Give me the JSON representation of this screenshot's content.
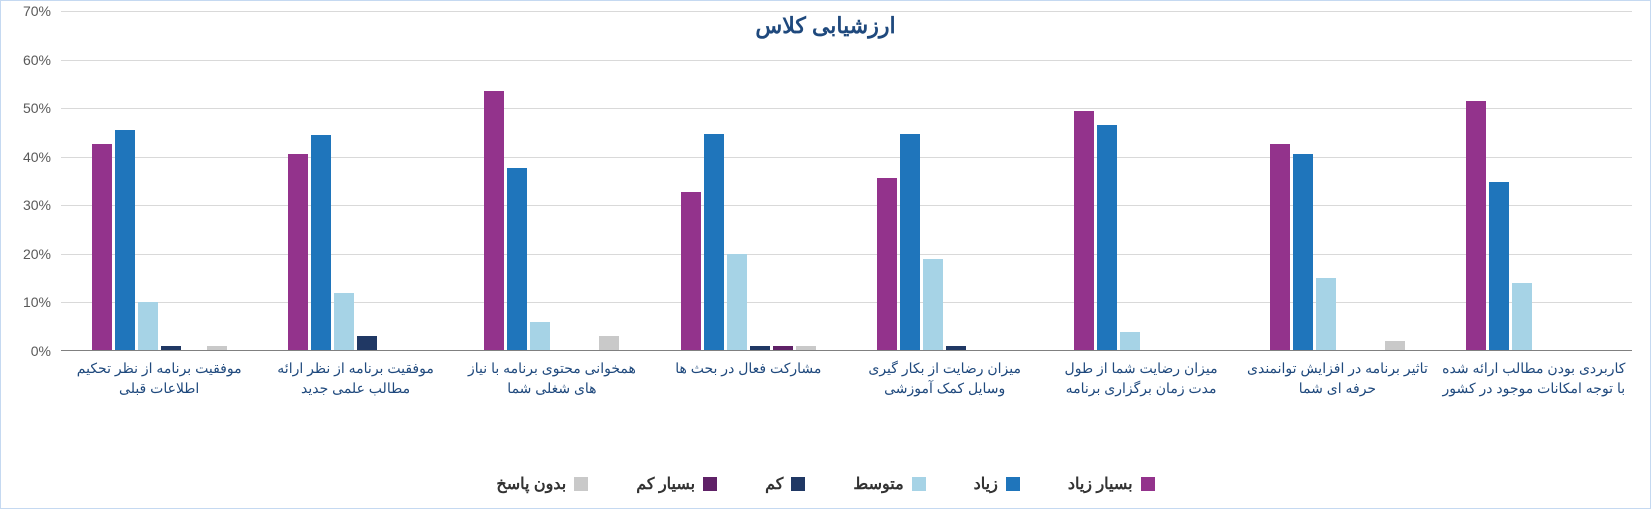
{
  "chart": {
    "title": "ارزشیابی کلاس",
    "title_color": "#1f497d",
    "title_fontsize": 22,
    "background_color": "#ffffff",
    "border_color": "#c5d9f1",
    "grid_color": "#d9d9d9",
    "axis_text_color": "#595959",
    "category_label_color": "#1f497d",
    "y_axis": {
      "min": 0,
      "max": 70,
      "step": 10,
      "suffix": "%",
      "ticks": [
        "0%",
        "10%",
        "20%",
        "30%",
        "40%",
        "50%",
        "60%",
        "70%"
      ]
    },
    "series": [
      {
        "name": "بسیار زیاد",
        "color": "#93338c"
      },
      {
        "name": "زیاد",
        "color": "#1f75bb"
      },
      {
        "name": "متوسط",
        "color": "#a6d3e6"
      },
      {
        "name": "کم",
        "color": "#203864"
      },
      {
        "name": "بسیار کم",
        "color": "#5f2167"
      },
      {
        "name": "بدون پاسخ",
        "color": "#c9c9c9"
      }
    ],
    "categories": [
      {
        "label": "موفقیت برنامه از نظر تحکیم اطلاعات قبلی",
        "values": [
          42.7,
          45.5,
          10.0,
          1.0,
          0.0,
          1.0
        ]
      },
      {
        "label": "موفقیت برنامه از نظر ارائه مطالب علمی جدید",
        "values": [
          40.6,
          44.5,
          12.0,
          3.0,
          0.0,
          0.0
        ]
      },
      {
        "label": "همخوانی محتوی برنامه با نیاز های شغلی شما",
        "values": [
          53.5,
          37.6,
          6.0,
          0.0,
          0.0,
          3.0
        ]
      },
      {
        "label": "مشارکت فعال در بحث ها",
        "values": [
          32.7,
          44.6,
          20.0,
          1.0,
          1.0,
          1.0
        ]
      },
      {
        "label": "میزان رضایت از بکار گیری وسایل کمک آموزشی",
        "values": [
          35.6,
          44.6,
          19.0,
          1.0,
          0.0,
          0.0
        ]
      },
      {
        "label": "میزان رضایت شما از طول مدت زمان برگزاری برنامه",
        "values": [
          49.5,
          46.5,
          4.0,
          0.0,
          0.0,
          0.0
        ]
      },
      {
        "label": "تاثیر برنامه در افزایش توانمندی حرفه ای شما",
        "values": [
          42.6,
          40.6,
          15.0,
          0.0,
          0.0,
          2.0
        ]
      },
      {
        "label": "کاربردی بودن مطالب ارائه شده با توجه امکانات موجود در کشور",
        "values": [
          51.5,
          34.7,
          14.0,
          0.0,
          0.0,
          0.0
        ]
      }
    ]
  }
}
